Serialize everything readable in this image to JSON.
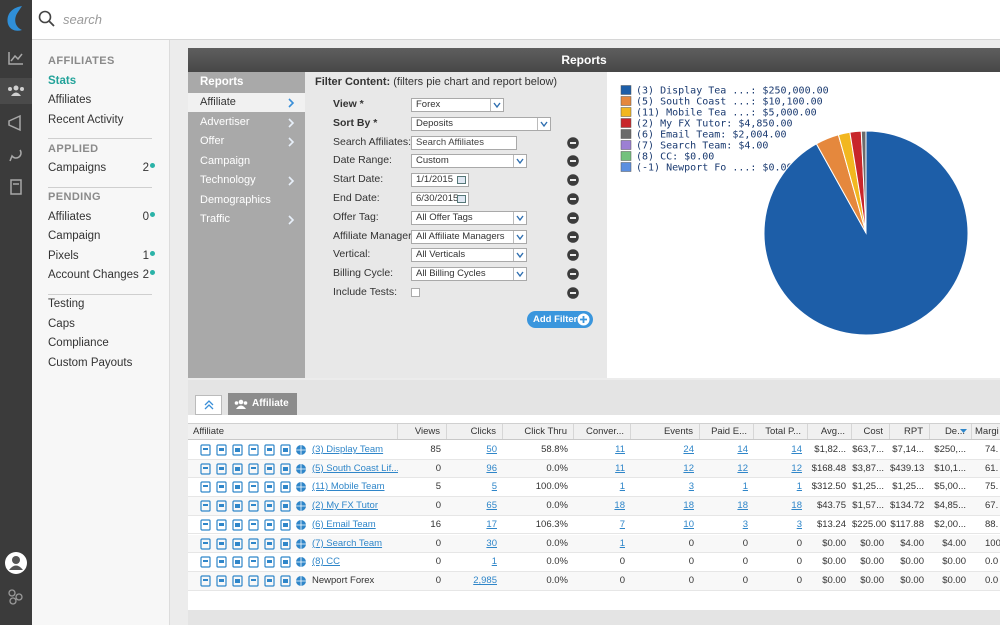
{
  "search_placeholder": "search",
  "sidebar": {
    "sections": [
      {
        "title": "AFFILIATES",
        "items": [
          {
            "label": "Stats",
            "active": true
          },
          {
            "label": "Affiliates"
          },
          {
            "label": "Recent Activity"
          }
        ]
      },
      {
        "title": "APPLIED",
        "items": [
          {
            "label": "Campaigns",
            "count": 2
          }
        ]
      },
      {
        "title": "PENDING",
        "items": [
          {
            "label": "Affiliates",
            "count": 0
          },
          {
            "label": "Campaign"
          },
          {
            "label": "Pixels",
            "count": 1
          },
          {
            "label": "Account Changes",
            "count": 2
          }
        ]
      },
      {
        "items": [
          {
            "label": "Testing"
          },
          {
            "label": "Caps"
          },
          {
            "label": "Compliance"
          },
          {
            "label": "Custom Payouts"
          }
        ]
      }
    ]
  },
  "reports": {
    "title": "Reports",
    "subnav": {
      "title": "Reports",
      "items": [
        {
          "label": "Affiliate",
          "active": true,
          "arrow": true
        },
        {
          "label": "Advertiser",
          "arrow": true
        },
        {
          "label": "Offer",
          "arrow": true
        },
        {
          "label": "Campaign",
          "arrow": false
        },
        {
          "label": "Technology",
          "arrow": true
        },
        {
          "label": "Demographics",
          "arrow": false
        },
        {
          "label": "Traffic",
          "arrow": true
        }
      ]
    },
    "filter": {
      "heading": "Filter Content:",
      "note": "(filters pie chart and report below)",
      "fields": [
        {
          "label": "View *",
          "value": "Forex",
          "kind": "select",
          "bold": true,
          "removable": false
        },
        {
          "label": "Sort By *",
          "value": "Deposits",
          "kind": "select",
          "bold": true,
          "removable": false
        },
        {
          "label": "Search Affiliates:",
          "value": "Search Affiliates",
          "kind": "input",
          "bold": false,
          "removable": true
        },
        {
          "label": "Date Range:",
          "value": "Custom",
          "kind": "select",
          "bold": false,
          "removable": true
        },
        {
          "label": "Start Date:",
          "value": "1/1/2015",
          "kind": "date",
          "bold": false,
          "removable": true
        },
        {
          "label": "End Date:",
          "value": "6/30/2015",
          "kind": "date",
          "bold": false,
          "removable": true
        },
        {
          "label": "Offer Tag:",
          "value": "All Offer Tags",
          "kind": "select",
          "bold": false,
          "removable": true
        },
        {
          "label": "Affiliate Manager:",
          "value": "All Affiliate Managers",
          "kind": "select",
          "bold": false,
          "removable": true
        },
        {
          "label": "Vertical:",
          "value": "All Verticals",
          "kind": "select",
          "bold": false,
          "removable": true
        },
        {
          "label": "Billing Cycle:",
          "value": "All Billing Cycles",
          "kind": "select",
          "bold": false,
          "removable": true
        },
        {
          "label": "Include Tests:",
          "kind": "checkbox",
          "bold": false,
          "removable": true
        }
      ],
      "add_button": "Add Filter"
    }
  },
  "chart_data": {
    "type": "pie",
    "labels": [
      "(3) Display Tea ...: $250,000.00",
      "(5) South Coast ...: $10,100.00",
      "(11) Mobile Tea ...: $5,000.00",
      "(2) My FX Tutor: $4,850.00",
      "(6) Email Team: $2,004.00",
      "(7) Search Team: $4.00",
      "(8) CC: $0.00",
      "(-1) Newport Fo ...: $0.00"
    ],
    "values": [
      250000,
      10100,
      5000,
      4850,
      2004,
      4,
      0,
      0
    ],
    "colors": [
      "#1d5ea8",
      "#e5883d",
      "#f2b720",
      "#c8262b",
      "#6b6b6b",
      "#9c7fd3",
      "#73c17d",
      "#5b8fe0"
    ]
  },
  "tabs": {
    "items": [
      "Affiliate"
    ]
  },
  "table": {
    "columns": [
      "Affiliate",
      "Views",
      "Clicks",
      "Click Thru",
      "Conver...",
      "Events",
      "Paid E...",
      "Total P...",
      "Avg...",
      "Cost",
      "RPT",
      "De...",
      "Margi"
    ],
    "rows": [
      {
        "link": true,
        "cells": [
          "(3) Display Team",
          "85",
          "50",
          "58.8%",
          "11",
          "24",
          "14",
          "14",
          "$1,82...",
          "$63,7...",
          "$7,14...",
          "$250,...",
          "74."
        ]
      },
      {
        "link": true,
        "cells": [
          "(5) South Coast Lif...",
          "0",
          "96",
          "0.0%",
          "11",
          "12",
          "12",
          "12",
          "$168.48",
          "$3,87...",
          "$439.13",
          "$10,1...",
          "61."
        ]
      },
      {
        "link": true,
        "cells": [
          "(11) Mobile Team",
          "5",
          "5",
          "100.0%",
          "1",
          "3",
          "1",
          "1",
          "$312.50",
          "$1,25...",
          "$1,25...",
          "$5,00...",
          "75."
        ]
      },
      {
        "link": true,
        "cells": [
          "(2) My FX Tutor",
          "0",
          "65",
          "0.0%",
          "18",
          "18",
          "18",
          "18",
          "$43.75",
          "$1,57...",
          "$134.72",
          "$4,85...",
          "67."
        ]
      },
      {
        "link": true,
        "cells": [
          "(6) Email Team",
          "16",
          "17",
          "106.3%",
          "7",
          "10",
          "3",
          "3",
          "$13.24",
          "$225.00",
          "$117.88",
          "$2,00...",
          "88."
        ]
      },
      {
        "link": true,
        "cells": [
          "(7) Search Team",
          "0",
          "30",
          "0.0%",
          "1",
          "0",
          "0",
          "0",
          "$0.00",
          "$0.00",
          "$4.00",
          "$4.00",
          "100."
        ]
      },
      {
        "link": true,
        "cells": [
          "(8) CC",
          "0",
          "1",
          "0.0%",
          "0",
          "0",
          "0",
          "0",
          "$0.00",
          "$0.00",
          "$0.00",
          "$0.00",
          "0.0"
        ]
      },
      {
        "link": false,
        "cells": [
          "Newport Forex",
          "0",
          "2,985",
          "0.0%",
          "0",
          "0",
          "0",
          "0",
          "$0.00",
          "$0.00",
          "$0.00",
          "$0.00",
          "0.0"
        ]
      }
    ]
  }
}
